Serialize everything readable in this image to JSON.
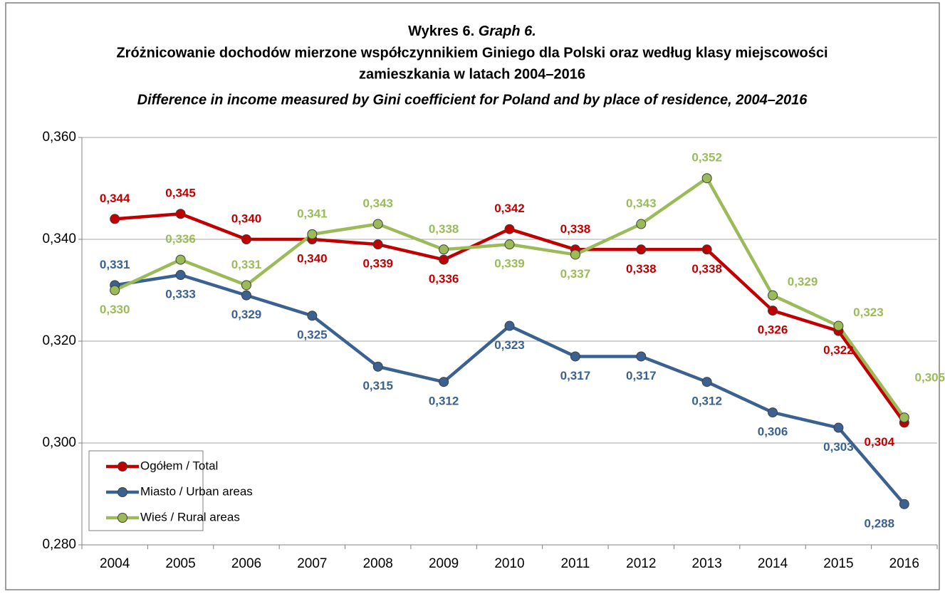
{
  "chart_data": {
    "type": "line",
    "title_label": "Wykres 6.",
    "title_label_en": "Graph 6.",
    "title_lines": [
      "Zróżnicowanie dochodów mierzone współczynnikiem Giniego dla Polski oraz według klasy miejscowości",
      "zamieszkania w latach 2004–2016"
    ],
    "subtitle": "Difference in income measured by Gini coefficient for Poland and by place of residence, 2004–2016",
    "categories": [
      "2004",
      "2005",
      "2006",
      "2007",
      "2008",
      "2009",
      "2010",
      "2011",
      "2012",
      "2013",
      "2014",
      "2015",
      "2016"
    ],
    "series": [
      {
        "name": "Ogółem / Total",
        "color": "#c00000",
        "values": [
          0.344,
          0.345,
          0.34,
          0.34,
          0.339,
          0.336,
          0.342,
          0.338,
          0.338,
          0.338,
          0.326,
          0.322,
          0.304
        ],
        "value_labels": [
          "0,344",
          "0,345",
          "0,340",
          "0,340",
          "0,339",
          "0,336",
          "0,342",
          "0,338",
          "0,338",
          "0,338",
          "0,326",
          "0,322",
          "0,304"
        ]
      },
      {
        "name": "Miasto / Urban areas",
        "color": "#3a6190",
        "values": [
          0.331,
          0.333,
          0.329,
          0.325,
          0.315,
          0.312,
          0.323,
          0.317,
          0.317,
          0.312,
          0.306,
          0.303,
          0.288
        ],
        "value_labels": [
          "0,331",
          "0,333",
          "0,329",
          "0,325",
          "0,315",
          "0,312",
          "0,323",
          "0,317",
          "0,317",
          "0,312",
          "0,306",
          "0,303",
          "0,288"
        ]
      },
      {
        "name": "Wieś / Rural areas",
        "color": "#9bbb59",
        "values": [
          0.33,
          0.336,
          0.331,
          0.341,
          0.343,
          0.338,
          0.339,
          0.337,
          0.343,
          0.352,
          0.329,
          0.323,
          0.305
        ],
        "value_labels": [
          "0,330",
          "0,336",
          "0,331",
          "0,341",
          "0,343",
          "0,338",
          "0,339",
          "0,337",
          "0,343",
          "0,352",
          "0,329",
          "0,323",
          "0,305"
        ]
      }
    ],
    "ylim": [
      0.28,
      0.36
    ],
    "yticks": [
      {
        "value": 0.28,
        "label": "0,280"
      },
      {
        "value": 0.3,
        "label": "0,300"
      },
      {
        "value": 0.32,
        "label": "0,320"
      },
      {
        "value": 0.34,
        "label": "0,340"
      },
      {
        "value": 0.36,
        "label": "0,360"
      }
    ],
    "grid": true,
    "legend": "lower left"
  }
}
